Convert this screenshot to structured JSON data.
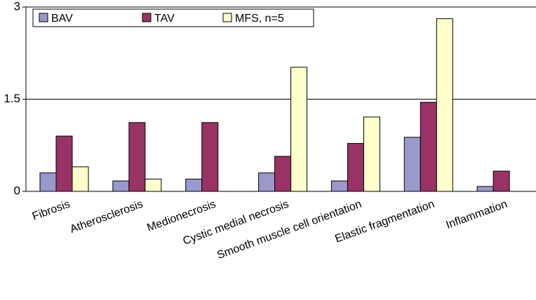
{
  "chart_data": {
    "type": "bar",
    "title": "",
    "xlabel": "",
    "ylabel": "",
    "ylim": [
      0,
      3
    ],
    "y_ticks": [
      "0",
      "1.5",
      "3"
    ],
    "grid": "horizontal",
    "legend_position": "top-left",
    "categories": [
      "Fibrosis",
      "Atherosclerosis",
      "Medionecrosis",
      "Cystic medial necrosis",
      "Smooth muscle cell orientation",
      "Elastic fragmentation",
      "Inflammation"
    ],
    "series": [
      {
        "name": "BAV",
        "color": "#9999cc",
        "values": [
          0.3,
          0.17,
          0.2,
          0.3,
          0.17,
          0.88,
          0.08
        ]
      },
      {
        "name": "TAV",
        "color": "#993366",
        "values": [
          0.9,
          1.12,
          1.12,
          0.57,
          0.78,
          1.45,
          0.33
        ]
      },
      {
        "name": "MFS, n=5",
        "color": "#ffffcc",
        "values": [
          0.4,
          0.2,
          0,
          2.02,
          1.21,
          2.81,
          0
        ]
      }
    ]
  }
}
